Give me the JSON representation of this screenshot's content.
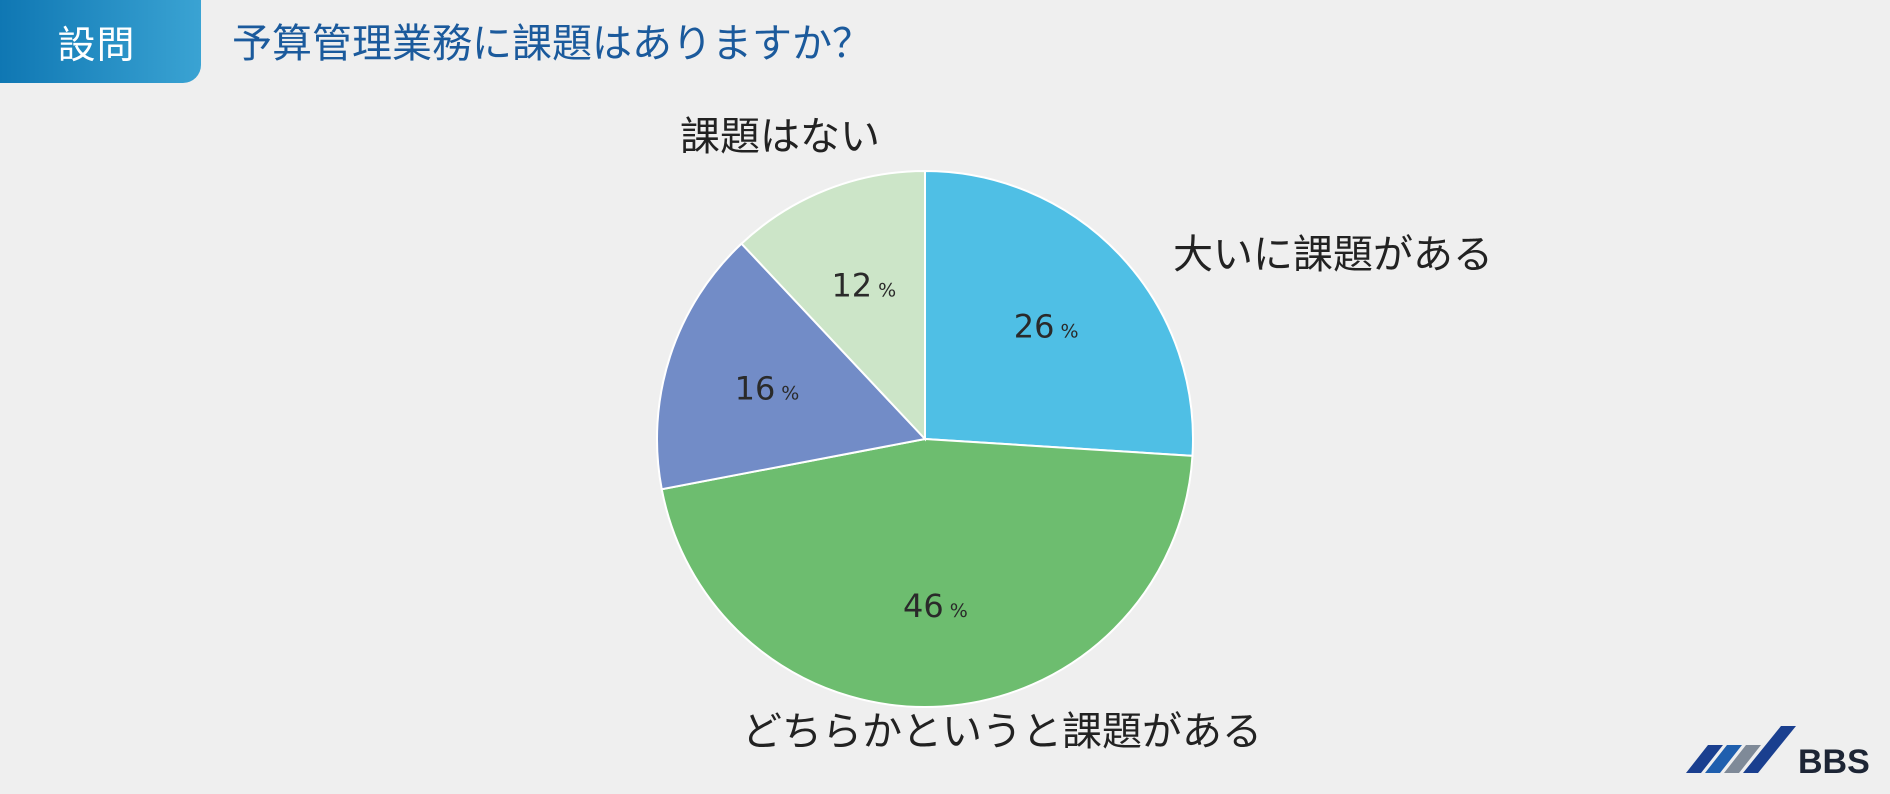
{
  "header": {
    "badge_label": "設問",
    "question": "予算管理業務に課題はありますか？"
  },
  "logo": {
    "text": "BBS",
    "colors": [
      "#1a3f8f",
      "#1f5fae",
      "#7f8a98"
    ]
  },
  "chart_data": {
    "type": "pie",
    "start": "12 o'clock",
    "direction": "clockwise",
    "value_suffix": "%",
    "slices": [
      {
        "label": "大いに課題がある",
        "value": 26,
        "color": "#4fbfe5"
      },
      {
        "label": "どちらかというと課題がある",
        "value": 46,
        "color": "#6dbd6f"
      },
      {
        "label": "",
        "value": 16,
        "color": "#728cc7"
      },
      {
        "label": "課題はない",
        "value": 12,
        "color": "#cce5c8"
      }
    ]
  }
}
